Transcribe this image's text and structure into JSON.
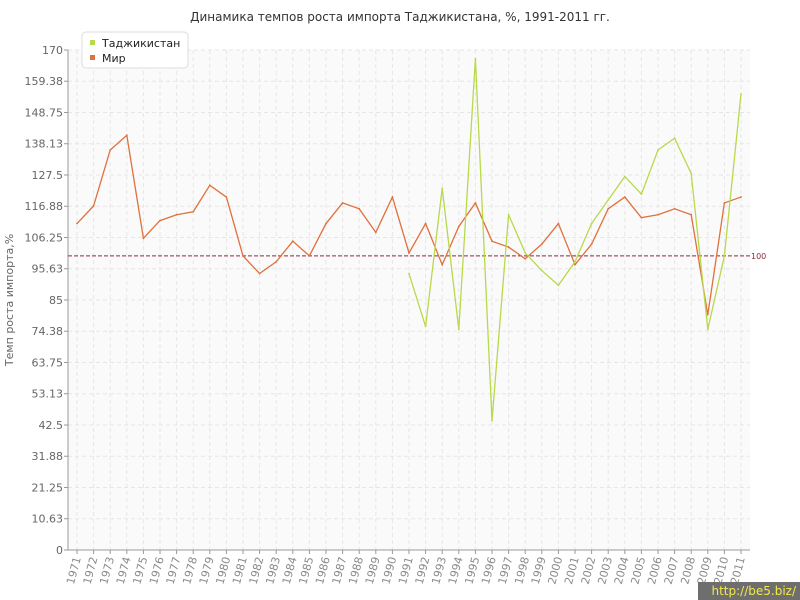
{
  "chart_data": {
    "type": "line",
    "title": "Динамика темпов роста импорта Таджикистана, %, 1991-2011 гг.",
    "ylabel": "Темп роста импорта,%",
    "xlabel": "",
    "ylim": [
      0,
      170
    ],
    "yticks": [
      "0",
      "10.63",
      "21.25",
      "31.88",
      "42.5",
      "53.13",
      "63.75",
      "74.38",
      "85",
      "95.63",
      "106.25",
      "116.88",
      "127.5",
      "138.13",
      "148.75",
      "159.38",
      "170"
    ],
    "categories": [
      "1971",
      "1972",
      "1973",
      "1974",
      "1975",
      "1976",
      "1977",
      "1978",
      "1979",
      "1980",
      "1981",
      "1982",
      "1983",
      "1984",
      "1985",
      "1986",
      "1987",
      "1988",
      "1989",
      "1990",
      "1991",
      "1992",
      "1993",
      "1994",
      "1995",
      "1996",
      "1997",
      "1998",
      "1999",
      "2000",
      "2001",
      "2002",
      "2003",
      "2004",
      "2005",
      "2006",
      "2007",
      "2008",
      "2009",
      "2010",
      "2011"
    ],
    "series": [
      {
        "name": "Таджикистан",
        "color": "#b8d94a",
        "values": [
          null,
          null,
          null,
          null,
          null,
          null,
          null,
          null,
          null,
          null,
          null,
          null,
          null,
          null,
          null,
          null,
          null,
          null,
          null,
          null,
          94,
          76,
          123,
          75,
          167,
          44,
          114,
          101,
          95,
          90,
          98,
          111,
          119,
          127,
          121,
          136,
          140,
          128,
          75,
          100,
          155
        ]
      },
      {
        "name": "Мир",
        "color": "#e0703d",
        "values": [
          111,
          117,
          136,
          141,
          106,
          112,
          114,
          115,
          124,
          120,
          100,
          94,
          98,
          105,
          100,
          111,
          118,
          116,
          108,
          120,
          101,
          111,
          97,
          110,
          118,
          105,
          103,
          99,
          104,
          111,
          97,
          104,
          116,
          120,
          113,
          114,
          116,
          114,
          80,
          118,
          120
        ]
      }
    ],
    "reference_line": {
      "value": 100,
      "label": "100",
      "color": "#8b2c3b"
    },
    "legend_position": "top-left",
    "grid": true
  },
  "watermark": "http://be5.biz/"
}
